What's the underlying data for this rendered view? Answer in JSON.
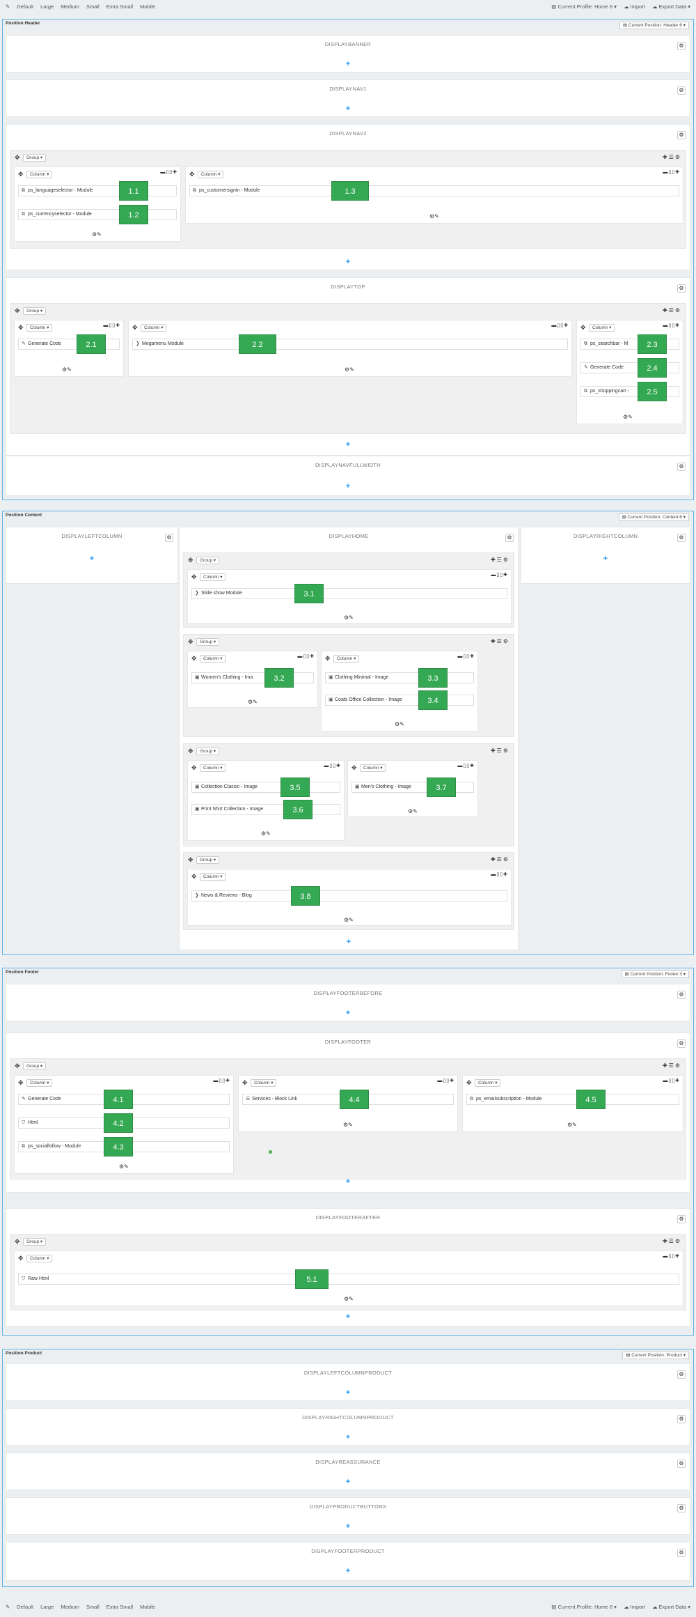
{
  "toolbar": {
    "edit_icon": "pencil-icon",
    "devices": [
      "Default",
      "Large",
      "Medium",
      "Small",
      "Extra Small",
      "Mobile"
    ],
    "profile": "Current Profile: Home 6",
    "import": "Import",
    "export": "Export Data"
  },
  "labels": {
    "group": "Group",
    "column": "Column",
    "gear": "⚙",
    "add": "+"
  },
  "sections": {
    "header": {
      "title": "Position Header",
      "profile": "Current Position: Header 6"
    },
    "content": {
      "title": "Position Content",
      "profile": "Current Position: Content 6"
    },
    "footer": {
      "title": "Position Footer",
      "profile": "Current Position: Footer 3"
    },
    "product": {
      "title": "Position Product",
      "profile": "Current Position: Product"
    }
  },
  "hooks": {
    "displaybanner": "DISPLAYBANNER",
    "displaynav1": "DISPLAYNAV1",
    "displaynav2": "DISPLAYNAV2",
    "displaytop": "DISPLAYTOP",
    "displaynavfullwidth": "DISPLAYNAVFULLWIDTH",
    "displayleftcolumn": "DISPLAYLEFTCOLUMN",
    "displayhome": "DISPLAYHOME",
    "displayrightcolumn": "DISPLAYRIGHTCOLUMN",
    "displayfooterbefore": "DISPLAYFOOTERBEFORE",
    "displayfooter": "DISPLAYFOOTER",
    "displayfooterafter": "DISPLAYFOOTERAFTER",
    "displayleftcolumnproduct": "DISPLAYLEFTCOLUMNPRODUCT",
    "displayrightcolumnproduct": "DISPLAYRIGHTCOLUMNPRODUCT",
    "displayreassurance": "DISPLAYREASSURANCE",
    "displayproductbuttons": "DISPLAYPRODUCTBUTTONS",
    "displayfooterproduct": "DISPLAYFOOTERPRODUCT"
  },
  "modules": {
    "m1_1": {
      "label": "ps_languageselector - Module",
      "badge": "1.1"
    },
    "m1_2": {
      "label": "ps_currencyselector - Module",
      "badge": "1.2"
    },
    "m1_3": {
      "label": "ps_customersignin - Module",
      "badge": "1.3"
    },
    "m2_1": {
      "label": "Generate Code",
      "badge": "2.1"
    },
    "m2_2": {
      "label": "Megamenu Module",
      "badge": "2.2"
    },
    "m2_3": {
      "label": "ps_searchbar - M",
      "badge": "2.3"
    },
    "m2_4": {
      "label": "Generate Code",
      "badge": "2.4"
    },
    "m2_5": {
      "label": "ps_shoppingcart -",
      "badge": "2.5"
    },
    "m3_1": {
      "label": "Slide show Module",
      "badge": "3.1"
    },
    "m3_2": {
      "label": "Women's Clothing - Ima",
      "badge": "3.2"
    },
    "m3_3": {
      "label": "Clothing Minimal - Image",
      "badge": "3.3"
    },
    "m3_4": {
      "label": "Coats Office Collection - Image",
      "badge": "3.4"
    },
    "m3_5": {
      "label": "Collection Classic - Image",
      "badge": "3.5"
    },
    "m3_6": {
      "label": "Print Shirt Collection - Image",
      "badge": "3.6"
    },
    "m3_7": {
      "label": "Men's Clothing - Image",
      "badge": "3.7"
    },
    "m3_8": {
      "label": "News & Reviews - Blog",
      "badge": "3.8"
    },
    "m4_1": {
      "label": "Generate Code",
      "badge": "4.1"
    },
    "m4_2": {
      "label": "Html",
      "badge": "4.2"
    },
    "m4_3": {
      "label": "ps_socialfollow - Module",
      "badge": "4.3"
    },
    "m4_4": {
      "label": "Services - Block Link",
      "badge": "4.4"
    },
    "m4_5": {
      "label": "ps_emailsubscription - Module",
      "badge": "4.5"
    },
    "m5_1": {
      "label": "Raw Html",
      "badge": "5.1"
    }
  }
}
